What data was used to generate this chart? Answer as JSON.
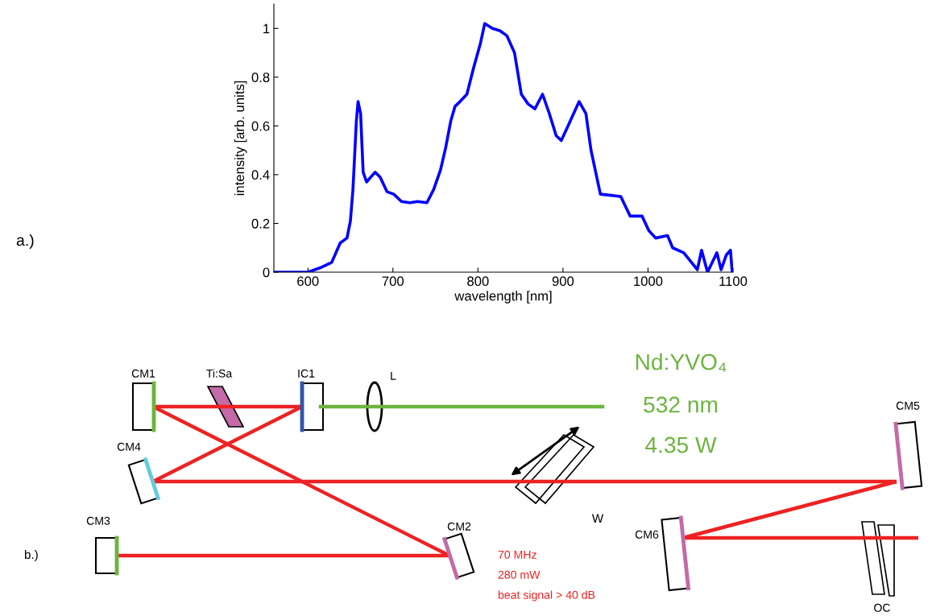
{
  "chart_data": [
    {
      "type": "line",
      "xlabel": "wavelength [nm]",
      "ylabel": "intensity [arb. units]",
      "annotations": [
        "a.)"
      ],
      "xlim": [
        560,
        1100
      ],
      "xticks": [
        600,
        700,
        800,
        900,
        1000,
        1100
      ],
      "ylim": [
        0,
        1.1
      ],
      "yticks": [
        0,
        0.2,
        0.4,
        0.6,
        0.8,
        1
      ],
      "series": [
        {
          "color": "#0000ff",
          "x": [
            561,
            600,
            616,
            628,
            638,
            646,
            650,
            653,
            657,
            659,
            662,
            665,
            669,
            679,
            685,
            693,
            701,
            710,
            720,
            729,
            740,
            748,
            756,
            762,
            768,
            773,
            779,
            787,
            795,
            803,
            808,
            817,
            826,
            834,
            843,
            851,
            859,
            867,
            876,
            884,
            892,
            898,
            906,
            919,
            927,
            933,
            944,
            957,
            968,
            979,
            993,
            1001,
            1009,
            1023,
            1029,
            1042,
            1058,
            1063,
            1070,
            1081,
            1086,
            1092,
            1097,
            1099
          ],
          "values": [
            0,
            0,
            0.02,
            0.04,
            0.12,
            0.14,
            0.21,
            0.34,
            0.62,
            0.7,
            0.65,
            0.41,
            0.37,
            0.41,
            0.39,
            0.33,
            0.32,
            0.29,
            0.285,
            0.29,
            0.285,
            0.34,
            0.42,
            0.51,
            0.62,
            0.68,
            0.7,
            0.73,
            0.84,
            0.94,
            1.02,
            1.0,
            0.99,
            0.97,
            0.9,
            0.73,
            0.69,
            0.67,
            0.73,
            0.65,
            0.56,
            0.54,
            0.6,
            0.7,
            0.65,
            0.5,
            0.32,
            0.315,
            0.31,
            0.23,
            0.23,
            0.17,
            0.14,
            0.15,
            0.1,
            0.08,
            0.01,
            0.09,
            0,
            0.08,
            0.01,
            0.07,
            0.09,
            0
          ]
        }
      ]
    },
    {
      "type": "other",
      "annotations": [
        "b.)",
        "CM1",
        "Ti:Sa",
        "IC1",
        "L",
        "Nd:YVO₄",
        "532 nm",
        "4.35 W",
        "CM5",
        "CM4",
        "W",
        "CM2",
        "CM3",
        "CM6",
        "OC",
        "70 MHz",
        "280 mW",
        "beat signal > 40 dB"
      ]
    }
  ]
}
